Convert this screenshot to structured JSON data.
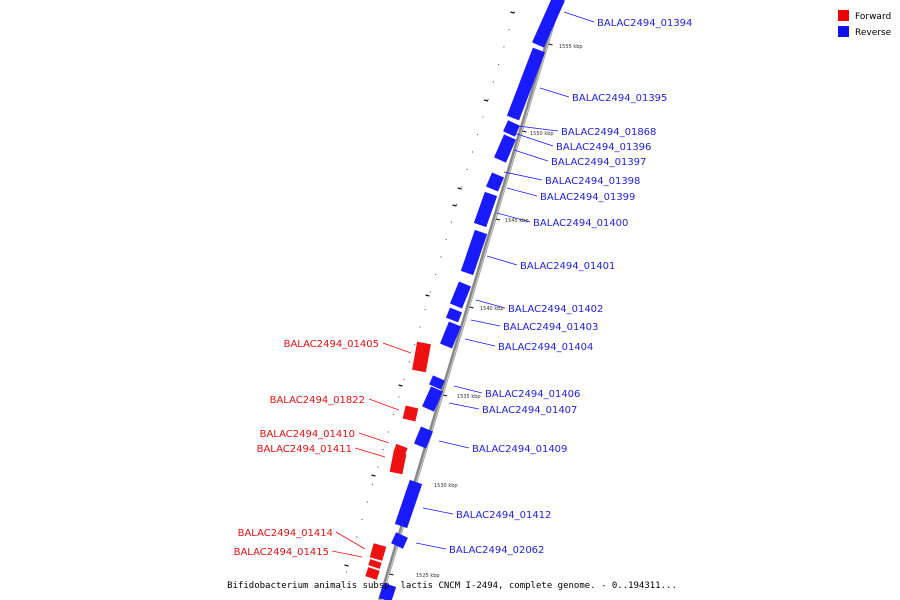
{
  "legend": {
    "forward_label": "Forward",
    "reverse_label": "Reverse",
    "forward_color": "#ee0000",
    "reverse_color": "#1111ee"
  },
  "footer_text": "Bifidobacterium animalis subsp. lactis CNCM I-2494, complete genome. - 0..194311...",
  "ticks": [
    "1555 kbp",
    "1550 kbp",
    "1545 kbp",
    "1540 kbp",
    "1535 kbp",
    "1530 kbp",
    "1525 kbp"
  ],
  "genes_reverse": [
    "BALAC2494_01394",
    "BALAC2494_01395",
    "BALAC2494_01868",
    "BALAC2494_01396",
    "BALAC2494_01397",
    "BALAC2494_01398",
    "BALAC2494_01399",
    "BALAC2494_01400",
    "BALAC2494_01401",
    "BALAC2494_01402",
    "BALAC2494_01403",
    "BALAC2494_01404",
    "BALAC2494_01406",
    "BALAC2494_01407",
    "BALAC2494_01409",
    "BALAC2494_01412",
    "BALAC2494_02062"
  ],
  "genes_forward": [
    "BALAC2494_01405",
    "BALAC2494_01822",
    "BALAC2494_01410",
    "BALAC2494_01411",
    "BALAC2494_01414",
    "BALAC2494_01415"
  ]
}
